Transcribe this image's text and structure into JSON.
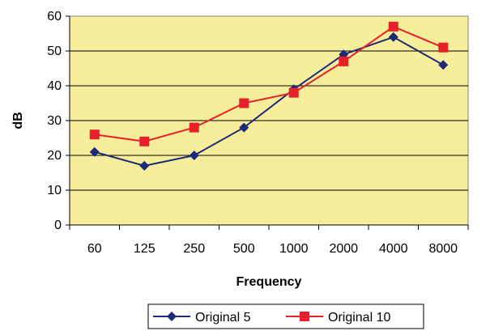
{
  "chart_data": {
    "type": "line",
    "title": "",
    "xlabel": "Frequency",
    "ylabel": "dB",
    "categories": [
      "60",
      "125",
      "250",
      "500",
      "1000",
      "2000",
      "4000",
      "8000"
    ],
    "ylim": [
      0,
      60
    ],
    "yticks": [
      "0",
      "10",
      "20",
      "30",
      "40",
      "50",
      "60"
    ],
    "grid": "horizontal",
    "legend_position": "bottom-center",
    "plot_background": "#f7ee9b",
    "series": [
      {
        "name": "Original 5",
        "values": [
          21,
          17,
          20,
          28,
          39,
          49,
          54,
          46
        ],
        "color": "#1c2a7a",
        "marker": "diamond"
      },
      {
        "name": "Original 10",
        "values": [
          26,
          24,
          28,
          35,
          38,
          47,
          57,
          51
        ],
        "color": "#e8202a",
        "marker": "square"
      }
    ]
  }
}
